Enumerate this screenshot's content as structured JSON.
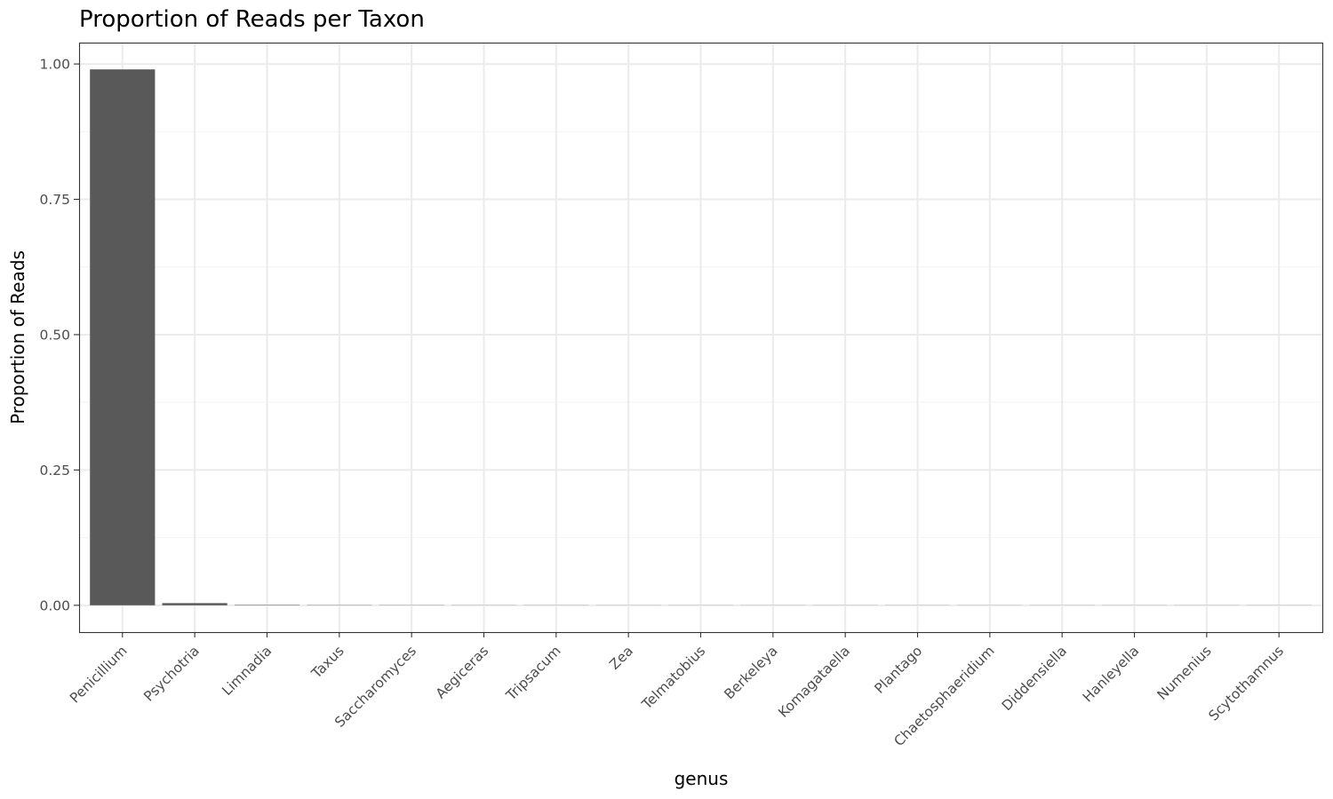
{
  "chart_data": {
    "type": "bar",
    "title": "Proportion of Reads per Taxon",
    "xlabel": "genus",
    "ylabel": "Proportion of Reads",
    "categories": [
      "Penicillium",
      "Psychotria",
      "Limnadia",
      "Taxus",
      "Saccharomyces",
      "Aegiceras",
      "Tripsacum",
      "Zea",
      "Telmatobius",
      "Berkeleya",
      "Komagataella",
      "Plantago",
      "Chaetosphaeridium",
      "Diddensiella",
      "Hanleyella",
      "Numenius",
      "Scytothamnus"
    ],
    "values": [
      0.99,
      0.004,
      0.0008,
      0.0005,
      0.0004,
      0.0003,
      0.0003,
      0.0002,
      0.0002,
      0.0002,
      0.0001,
      0.0001,
      0.0001,
      0.0001,
      0.0001,
      0.0001,
      0.0001
    ],
    "ylim": [
      -0.0495,
      1.0395
    ],
    "yticks": [
      0,
      0.25,
      0.5,
      0.75,
      1
    ],
    "ytick_labels": [
      "0.00",
      "0.25",
      "0.50",
      "0.75",
      "1.00"
    ],
    "grid": true,
    "legend": "none",
    "bar_color": "#595959"
  }
}
